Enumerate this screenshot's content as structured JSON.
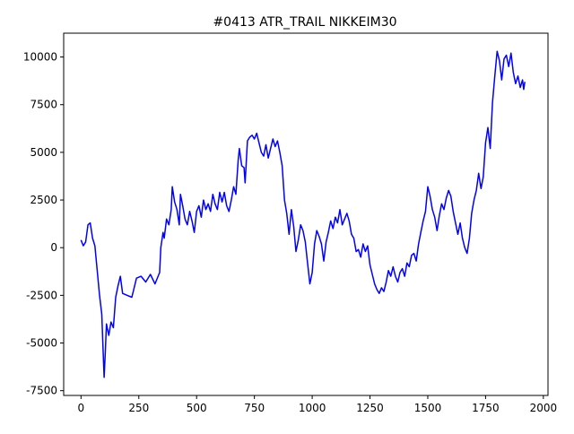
{
  "chart_data": {
    "type": "line",
    "title": "#0413 ATR_TRAIL NIKKEIM30",
    "xlabel": "",
    "ylabel": "",
    "xlim": [
      -75,
      2020
    ],
    "ylim": [
      -7750,
      11250
    ],
    "xticks": [
      0,
      250,
      500,
      750,
      1000,
      1250,
      1500,
      1750,
      2000
    ],
    "yticks": [
      -7500,
      -5000,
      -2500,
      0,
      2500,
      5000,
      7500,
      10000
    ],
    "grid": false,
    "legend": "none",
    "series": [
      {
        "color": "#0000ff",
        "points": [
          [
            0,
            400
          ],
          [
            10,
            100
          ],
          [
            20,
            300
          ],
          [
            30,
            1200
          ],
          [
            40,
            1300
          ],
          [
            50,
            500
          ],
          [
            60,
            100
          ],
          [
            70,
            -1200
          ],
          [
            80,
            -2500
          ],
          [
            90,
            -3500
          ],
          [
            95,
            -5200
          ],
          [
            100,
            -6800
          ],
          [
            105,
            -5500
          ],
          [
            110,
            -4000
          ],
          [
            120,
            -4600
          ],
          [
            130,
            -3900
          ],
          [
            140,
            -4200
          ],
          [
            150,
            -2600
          ],
          [
            160,
            -2000
          ],
          [
            170,
            -1500
          ],
          [
            180,
            -2400
          ],
          [
            200,
            -2500
          ],
          [
            220,
            -2600
          ],
          [
            240,
            -1600
          ],
          [
            260,
            -1500
          ],
          [
            280,
            -1800
          ],
          [
            300,
            -1400
          ],
          [
            320,
            -1900
          ],
          [
            340,
            -1300
          ],
          [
            345,
            0
          ],
          [
            355,
            800
          ],
          [
            360,
            500
          ],
          [
            370,
            1500
          ],
          [
            380,
            1200
          ],
          [
            390,
            2000
          ],
          [
            395,
            3200
          ],
          [
            405,
            2400
          ],
          [
            415,
            2000
          ],
          [
            425,
            1200
          ],
          [
            430,
            2800
          ],
          [
            440,
            2200
          ],
          [
            450,
            1500
          ],
          [
            460,
            1200
          ],
          [
            470,
            1900
          ],
          [
            480,
            1400
          ],
          [
            490,
            800
          ],
          [
            500,
            1900
          ],
          [
            510,
            2200
          ],
          [
            520,
            1600
          ],
          [
            530,
            2500
          ],
          [
            540,
            2000
          ],
          [
            550,
            2300
          ],
          [
            560,
            1900
          ],
          [
            570,
            2800
          ],
          [
            580,
            2300
          ],
          [
            590,
            2000
          ],
          [
            600,
            2900
          ],
          [
            610,
            2400
          ],
          [
            620,
            2900
          ],
          [
            630,
            2200
          ],
          [
            640,
            1900
          ],
          [
            650,
            2500
          ],
          [
            660,
            3200
          ],
          [
            670,
            2800
          ],
          [
            680,
            4600
          ],
          [
            685,
            5200
          ],
          [
            695,
            4300
          ],
          [
            705,
            4200
          ],
          [
            710,
            3400
          ],
          [
            720,
            5600
          ],
          [
            730,
            5800
          ],
          [
            740,
            5900
          ],
          [
            750,
            5700
          ],
          [
            760,
            6000
          ],
          [
            770,
            5500
          ],
          [
            780,
            5000
          ],
          [
            790,
            4800
          ],
          [
            800,
            5400
          ],
          [
            810,
            4700
          ],
          [
            820,
            5200
          ],
          [
            830,
            5700
          ],
          [
            840,
            5300
          ],
          [
            850,
            5600
          ],
          [
            860,
            5000
          ],
          [
            870,
            4300
          ],
          [
            880,
            2500
          ],
          [
            890,
            1800
          ],
          [
            900,
            700
          ],
          [
            910,
            2000
          ],
          [
            920,
            1100
          ],
          [
            930,
            -200
          ],
          [
            940,
            400
          ],
          [
            950,
            1200
          ],
          [
            960,
            900
          ],
          [
            970,
            300
          ],
          [
            980,
            -800
          ],
          [
            990,
            -1900
          ],
          [
            1000,
            -1300
          ],
          [
            1010,
            200
          ],
          [
            1020,
            900
          ],
          [
            1030,
            600
          ],
          [
            1040,
            200
          ],
          [
            1050,
            -700
          ],
          [
            1060,
            300
          ],
          [
            1070,
            800
          ],
          [
            1080,
            1400
          ],
          [
            1090,
            1000
          ],
          [
            1100,
            1600
          ],
          [
            1110,
            1300
          ],
          [
            1120,
            2000
          ],
          [
            1130,
            1200
          ],
          [
            1140,
            1500
          ],
          [
            1150,
            1800
          ],
          [
            1160,
            1400
          ],
          [
            1170,
            700
          ],
          [
            1180,
            500
          ],
          [
            1190,
            -200
          ],
          [
            1200,
            -100
          ],
          [
            1210,
            -500
          ],
          [
            1220,
            200
          ],
          [
            1230,
            -200
          ],
          [
            1240,
            100
          ],
          [
            1250,
            -900
          ],
          [
            1260,
            -1400
          ],
          [
            1270,
            -1900
          ],
          [
            1280,
            -2200
          ],
          [
            1290,
            -2400
          ],
          [
            1300,
            -2100
          ],
          [
            1310,
            -2300
          ],
          [
            1320,
            -1800
          ],
          [
            1330,
            -1200
          ],
          [
            1340,
            -1500
          ],
          [
            1350,
            -1000
          ],
          [
            1360,
            -1500
          ],
          [
            1370,
            -1800
          ],
          [
            1380,
            -1300
          ],
          [
            1390,
            -1100
          ],
          [
            1400,
            -1500
          ],
          [
            1410,
            -800
          ],
          [
            1420,
            -1000
          ],
          [
            1430,
            -400
          ],
          [
            1440,
            -300
          ],
          [
            1450,
            -700
          ],
          [
            1460,
            200
          ],
          [
            1470,
            800
          ],
          [
            1480,
            1400
          ],
          [
            1490,
            1900
          ],
          [
            1500,
            3200
          ],
          [
            1510,
            2700
          ],
          [
            1520,
            2000
          ],
          [
            1530,
            1600
          ],
          [
            1540,
            900
          ],
          [
            1550,
            1700
          ],
          [
            1560,
            2300
          ],
          [
            1570,
            2000
          ],
          [
            1580,
            2600
          ],
          [
            1590,
            3000
          ],
          [
            1600,
            2700
          ],
          [
            1610,
            1900
          ],
          [
            1620,
            1300
          ],
          [
            1630,
            700
          ],
          [
            1640,
            1300
          ],
          [
            1650,
            500
          ],
          [
            1660,
            0
          ],
          [
            1670,
            -300
          ],
          [
            1680,
            500
          ],
          [
            1690,
            1800
          ],
          [
            1700,
            2500
          ],
          [
            1710,
            3000
          ],
          [
            1720,
            3900
          ],
          [
            1730,
            3100
          ],
          [
            1740,
            3700
          ],
          [
            1750,
            5500
          ],
          [
            1760,
            6300
          ],
          [
            1770,
            5200
          ],
          [
            1780,
            7600
          ],
          [
            1790,
            9000
          ],
          [
            1800,
            10300
          ],
          [
            1810,
            9800
          ],
          [
            1820,
            8800
          ],
          [
            1830,
            9900
          ],
          [
            1840,
            10100
          ],
          [
            1850,
            9500
          ],
          [
            1860,
            10200
          ],
          [
            1870,
            9200
          ],
          [
            1880,
            8600
          ],
          [
            1890,
            9000
          ],
          [
            1900,
            8400
          ],
          [
            1910,
            8800
          ],
          [
            1915,
            8300
          ],
          [
            1920,
            8700
          ]
        ]
      }
    ]
  }
}
